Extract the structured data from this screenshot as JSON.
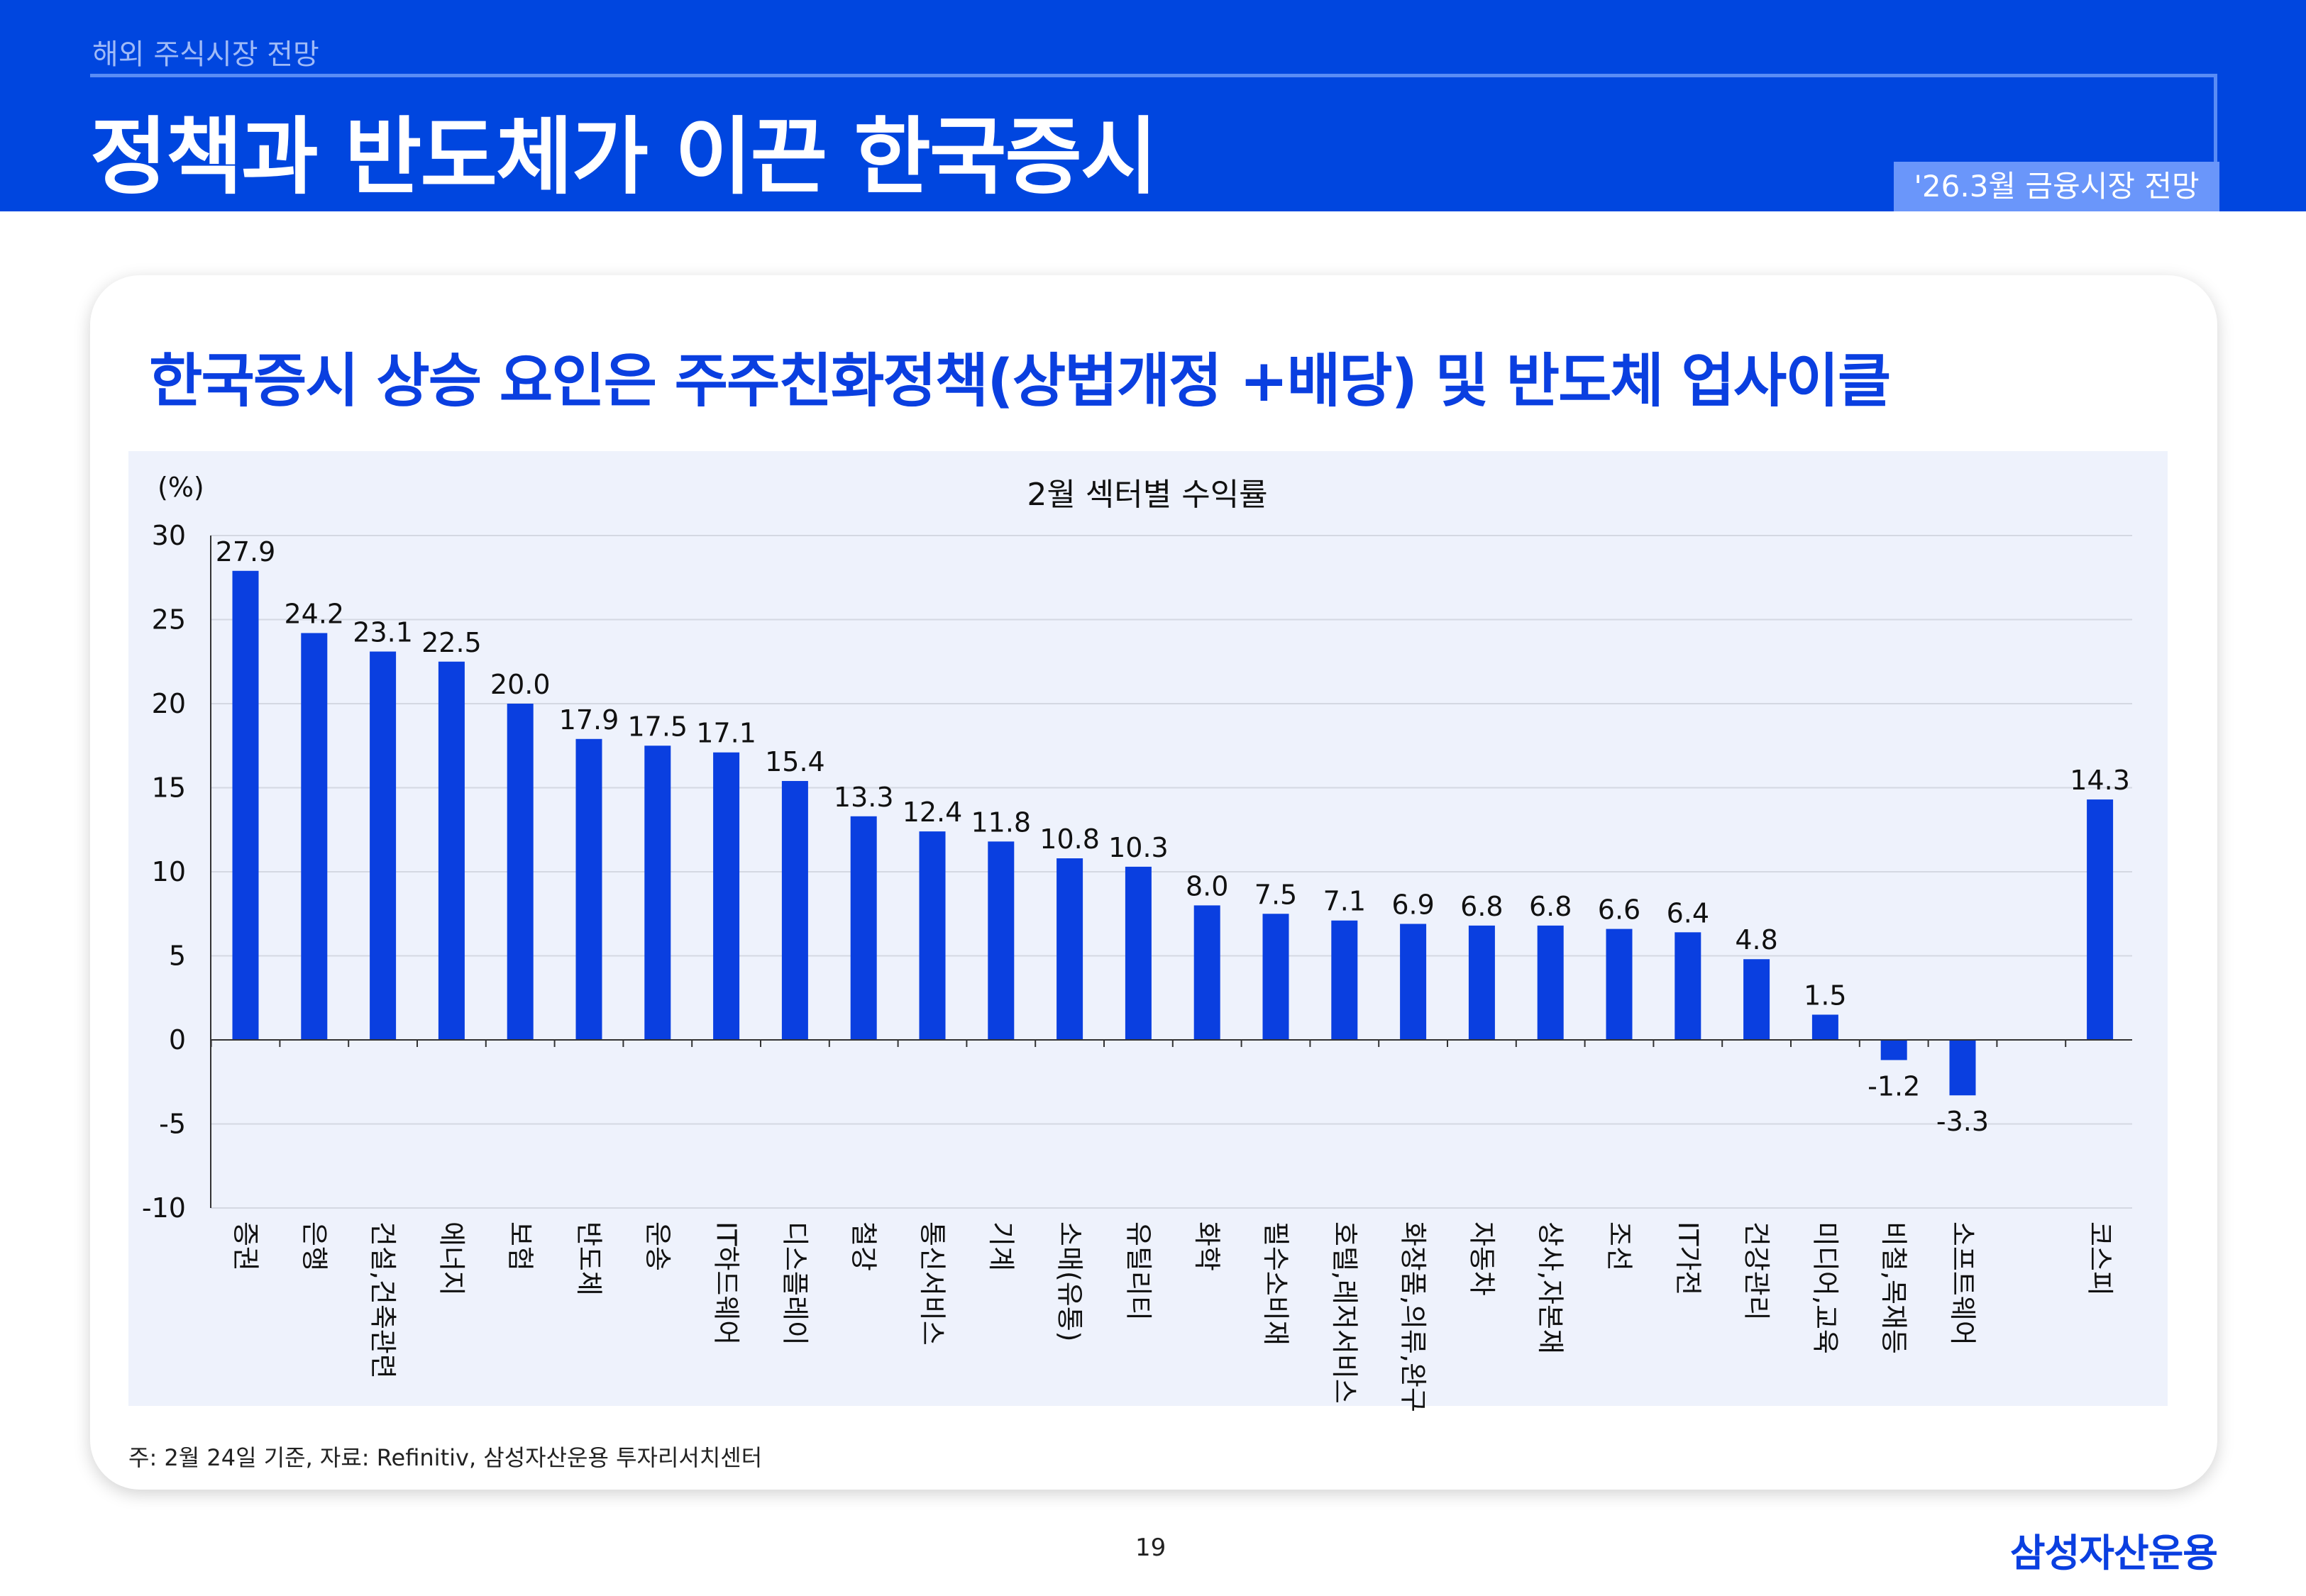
{
  "header": {
    "section": "해외 주식시장 전망",
    "title": "정책과 반도체가 이끈 한국증시",
    "badge": "'26.3월 금융시장 전망"
  },
  "subtitle": "한국증시 상승 요인은 주주친화정책(상법개정 +배당) 및 반도체 업사이클",
  "colors": {
    "header": "#0046df",
    "bar": "#0a3fe0",
    "chart_bg": "#eef2fc"
  },
  "chart_data": {
    "type": "bar",
    "title": "2월 섹터별 수익률",
    "ylabel": "(%)",
    "ylim": [
      -10,
      30
    ],
    "yticks": [
      30,
      25,
      20,
      15,
      10,
      5,
      0,
      -5,
      -10
    ],
    "grid": true,
    "categories": [
      "증권",
      "은행",
      "건설,건축관련",
      "에너지",
      "보험",
      "반도체",
      "운송",
      "IT하드웨어",
      "디스플레이",
      "철강",
      "통신서비스",
      "기계",
      "소매(유통)",
      "유틸리티",
      "화학",
      "필수소비재",
      "호텔,레저서비스",
      "화장품,의류,완구",
      "자동차",
      "상사,자본재",
      "조선",
      "IT가전",
      "건강관리",
      "미디어,교육",
      "비철,목재등",
      "소프트웨어",
      "코스피"
    ],
    "values": [
      27.9,
      24.2,
      23.1,
      22.5,
      20.0,
      17.9,
      17.5,
      17.1,
      15.4,
      13.3,
      12.4,
      11.8,
      10.8,
      10.3,
      8.0,
      7.5,
      7.1,
      6.9,
      6.8,
      6.8,
      6.6,
      6.4,
      4.8,
      1.5,
      -1.2,
      -3.3,
      14.3
    ],
    "labels": [
      "27.9",
      "24.2",
      "23.1",
      "22.5",
      "20.0",
      "17.9",
      "17.5",
      "17.1",
      "15.4",
      "13.3",
      "12.4",
      "11.8",
      "10.8",
      "10.3",
      "8.0",
      "7.5",
      "7.1",
      "6.9",
      "6.8",
      "6.8",
      "6.6",
      "6.4",
      "4.8",
      "1.5",
      "-1.2",
      "-3.3",
      "14.3"
    ]
  },
  "footnote": "주: 2월 24일 기준, 자료: Refinitiv, 삼성자산운용 투자리서치센터",
  "page_number": "19",
  "logo": "삼성자산운용"
}
